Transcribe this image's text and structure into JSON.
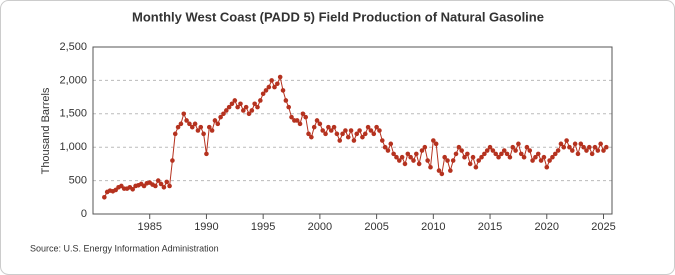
{
  "chart_data": {
    "type": "line",
    "title": "Monthly West Coast (PADD 5) Field Production of Natural Gasoline",
    "y_label": "Thousand Barrels",
    "source": "Source: U.S. Energy Information Administration",
    "x": [
      1981,
      1981.25,
      1981.5,
      1981.75,
      1982,
      1982.25,
      1982.5,
      1982.75,
      1983,
      1983.25,
      1983.5,
      1983.75,
      1984,
      1984.25,
      1984.5,
      1984.75,
      1985,
      1985.25,
      1985.5,
      1985.75,
      1986,
      1986.25,
      1986.5,
      1986.75,
      1987,
      1987.25,
      1987.5,
      1987.75,
      1988,
      1988.25,
      1988.5,
      1988.75,
      1989,
      1989.25,
      1989.5,
      1989.75,
      1990,
      1990.25,
      1990.5,
      1990.75,
      1991,
      1991.25,
      1991.5,
      1991.75,
      1992,
      1992.25,
      1992.5,
      1992.75,
      1993,
      1993.25,
      1993.5,
      1993.75,
      1994,
      1994.25,
      1994.5,
      1994.75,
      1995,
      1995.25,
      1995.5,
      1995.75,
      1996,
      1996.25,
      1996.5,
      1996.75,
      1997,
      1997.25,
      1997.5,
      1997.75,
      1998,
      1998.25,
      1998.5,
      1998.75,
      1999,
      1999.25,
      1999.5,
      1999.75,
      2000,
      2000.25,
      2000.5,
      2000.75,
      2001,
      2001.25,
      2001.5,
      2001.75,
      2002,
      2002.25,
      2002.5,
      2002.75,
      2003,
      2003.25,
      2003.5,
      2003.75,
      2004,
      2004.25,
      2004.5,
      2004.75,
      2005,
      2005.25,
      2005.5,
      2005.75,
      2006,
      2006.25,
      2006.5,
      2006.75,
      2007,
      2007.25,
      2007.5,
      2007.75,
      2008,
      2008.25,
      2008.5,
      2008.75,
      2009,
      2009.25,
      2009.5,
      2009.75,
      2010,
      2010.25,
      2010.5,
      2010.75,
      2011,
      2011.25,
      2011.5,
      2011.75,
      2012,
      2012.25,
      2012.5,
      2012.75,
      2013,
      2013.25,
      2013.5,
      2013.75,
      2014,
      2014.25,
      2014.5,
      2014.75,
      2015,
      2015.25,
      2015.5,
      2015.75,
      2016,
      2016.25,
      2016.5,
      2016.75,
      2017,
      2017.25,
      2017.5,
      2017.75,
      2018,
      2018.25,
      2018.5,
      2018.75,
      2019,
      2019.25,
      2019.5,
      2019.75,
      2020,
      2020.25,
      2020.5,
      2020.75,
      2021,
      2021.25,
      2021.5,
      2021.75,
      2022,
      2022.25,
      2022.5,
      2022.75,
      2023,
      2023.25,
      2023.5,
      2023.75,
      2024,
      2024.25,
      2024.5,
      2024.75,
      2025,
      2025.25
    ],
    "series": [
      {
        "name": "West Coast (PADD 5) Field Production of Natural Gasoline",
        "color": "#b5321f",
        "values": [
          250,
          330,
          350,
          340,
          360,
          400,
          420,
          380,
          380,
          400,
          370,
          420,
          430,
          450,
          420,
          460,
          470,
          440,
          420,
          500,
          450,
          400,
          480,
          420,
          800,
          1200,
          1300,
          1350,
          1500,
          1400,
          1350,
          1300,
          1350,
          1250,
          1300,
          1200,
          900,
          1300,
          1250,
          1400,
          1350,
          1450,
          1500,
          1550,
          1600,
          1650,
          1700,
          1600,
          1650,
          1550,
          1600,
          1500,
          1550,
          1650,
          1600,
          1700,
          1800,
          1850,
          1900,
          2000,
          1900,
          1950,
          2050,
          1850,
          1700,
          1600,
          1450,
          1400,
          1400,
          1350,
          1500,
          1450,
          1200,
          1150,
          1300,
          1400,
          1350,
          1250,
          1200,
          1300,
          1250,
          1300,
          1200,
          1100,
          1200,
          1250,
          1150,
          1250,
          1100,
          1200,
          1250,
          1150,
          1200,
          1300,
          1250,
          1200,
          1300,
          1250,
          1100,
          1000,
          950,
          1050,
          900,
          850,
          800,
          850,
          750,
          900,
          850,
          800,
          900,
          750,
          950,
          1000,
          800,
          700,
          1100,
          1050,
          650,
          600,
          850,
          800,
          650,
          800,
          900,
          1000,
          950,
          850,
          900,
          750,
          850,
          700,
          800,
          850,
          900,
          950,
          1000,
          950,
          900,
          850,
          900,
          950,
          900,
          850,
          1000,
          950,
          1050,
          900,
          850,
          1000,
          950,
          800,
          850,
          900,
          800,
          850,
          700,
          800,
          850,
          900,
          950,
          1050,
          1000,
          1100,
          1000,
          950,
          1050,
          900,
          1050,
          1000,
          950,
          1000,
          900,
          1000,
          950,
          1050,
          950,
          1000
        ]
      }
    ],
    "xlim": [
      1980,
      2025.75
    ],
    "xticks": [
      1985,
      1990,
      1995,
      2000,
      2005,
      2010,
      2015,
      2020,
      2025
    ],
    "ylim": [
      0,
      2500
    ],
    "yticks": [
      0,
      500,
      {
        "value": 1000,
        "label": "1,000"
      },
      {
        "value": 1500,
        "label": "1,500"
      },
      {
        "value": 2000,
        "label": "2,000"
      },
      {
        "value": 2500,
        "label": "2,500"
      }
    ],
    "grid": true
  }
}
